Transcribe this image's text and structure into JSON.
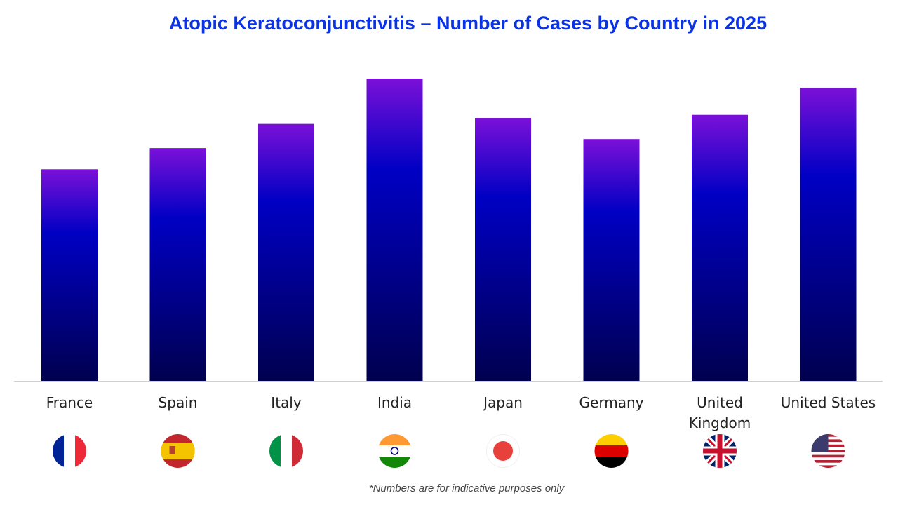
{
  "chart_data": {
    "type": "bar",
    "title": "Atopic Keratoconjunctivitis – Number of Cases by Country in 2025",
    "categories": [
      "France",
      "Spain",
      "Italy",
      "India",
      "Japan",
      "Germany",
      "United Kingdom",
      "United States"
    ],
    "values": [
      70,
      77,
      85,
      100,
      87,
      80,
      88,
      97
    ],
    "ylim": [
      0,
      100
    ],
    "grid": false,
    "legend": "none",
    "flags": [
      "france-flag-icon",
      "spain-flag-icon",
      "italy-flag-icon",
      "india-flag-icon",
      "japan-flag-icon",
      "germany-flag-icon",
      "uk-flag-icon",
      "us-flag-icon"
    ],
    "colors": {
      "bar_top": "#7b10d8",
      "bar_mid": "#0000c4",
      "bar_bottom": "#00004f",
      "title": "#0a32e6"
    },
    "footnote": "*Numbers are for indicative purposes only"
  }
}
